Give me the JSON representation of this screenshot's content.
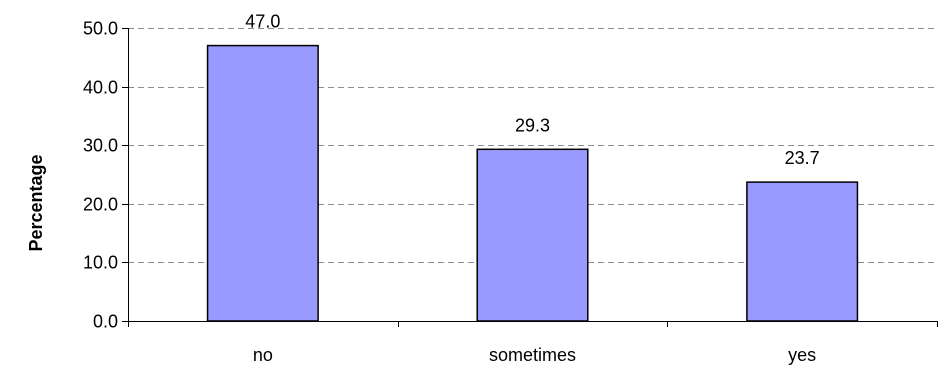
{
  "chart_data": {
    "type": "bar",
    "categories": [
      "no",
      "sometimes",
      "yes"
    ],
    "values": [
      47.0,
      29.3,
      23.7
    ],
    "data_labels": [
      "47.0",
      "29.3",
      "23.7"
    ],
    "title": "",
    "xlabel": "",
    "ylabel": "Percentage",
    "ylim": [
      0,
      50
    ],
    "yticks": [
      0,
      10,
      20,
      30,
      40,
      50
    ],
    "ytick_labels": [
      "0.0",
      "10.0",
      "20.0",
      "30.0",
      "40.0",
      "50.0"
    ],
    "grid": true,
    "legend": "none",
    "colors": {
      "bar_fill": "#9999ff",
      "bar_stroke": "#000000",
      "grid": "#8c8c8c",
      "axis": "#000000"
    }
  }
}
